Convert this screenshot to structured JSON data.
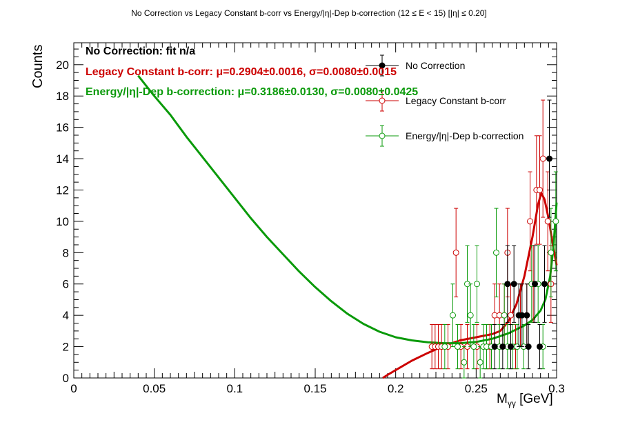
{
  "title": "No Correction vs Legacy Constant b-corr vs Energy/|η|-Dep b-correction   (12 ≤ E < 15)   [|η| ≤ 0.20]",
  "fit_texts": {
    "no_correction": "No Correction: fit n/a",
    "legacy": "Legacy Constant b-corr: μ=0.2904±0.0016, σ=0.0080±0.0015",
    "energy": "Energy/|η|-Dep b-correction: μ=0.3186±0.0130, σ=0.0080±0.0425"
  },
  "legend": [
    "No Correction",
    "Legacy Constant b-corr",
    "Energy/|η|-Dep b-correction"
  ],
  "axis": {
    "ylabel": "Counts",
    "xlabel_main": "M",
    "xlabel_sub": "γγ",
    "xlabel_unit": " [GeV]"
  },
  "colors": {
    "no_correction": "#000000",
    "legacy": "#cc0000",
    "energy": "#0a9a0a"
  },
  "chart_data": {
    "type": "scatter",
    "title": "No Correction vs Legacy Constant b-corr vs Energy/|η|-Dep b-correction   (12 ≤ E < 15)   [|η| ≤ 0.20]",
    "xlabel": "Mγγ [GeV]",
    "ylabel": "Counts",
    "xlim": [
      0,
      0.3
    ],
    "ylim": [
      0,
      21.4
    ],
    "xticks": [
      0,
      0.05,
      0.1,
      0.15,
      0.2,
      0.25,
      0.3
    ],
    "xtick_labels": [
      "0",
      "0.05",
      "0.1",
      "0.15",
      "0.2",
      "0.25",
      "0.3"
    ],
    "yticks": [
      0,
      2,
      4,
      6,
      8,
      10,
      12,
      14,
      16,
      18,
      20
    ],
    "ytick_labels": [
      "0",
      "2",
      "4",
      "6",
      "8",
      "10",
      "12",
      "14",
      "16",
      "18",
      "20"
    ],
    "grid": false,
    "legend_position": "top-right",
    "series": [
      {
        "name": "No Correction",
        "marker": "filled-circle",
        "points": [
          [
            0.2615,
            2
          ],
          [
            0.2665,
            2
          ],
          [
            0.2695,
            6
          ],
          [
            0.2715,
            2
          ],
          [
            0.2735,
            6
          ],
          [
            0.2765,
            4
          ],
          [
            0.2785,
            4
          ],
          [
            0.2815,
            4
          ],
          [
            0.2825,
            2
          ],
          [
            0.2865,
            6
          ],
          [
            0.2895,
            2
          ],
          [
            0.2925,
            6
          ],
          [
            0.2955,
            14
          ]
        ]
      },
      {
        "name": "Legacy Constant b-corr",
        "marker": "open-circle",
        "points": [
          [
            0.2225,
            2
          ],
          [
            0.2245,
            2
          ],
          [
            0.2265,
            2
          ],
          [
            0.2285,
            2
          ],
          [
            0.2325,
            2
          ],
          [
            0.2375,
            8
          ],
          [
            0.2405,
            2
          ],
          [
            0.2445,
            2
          ],
          [
            0.2505,
            2
          ],
          [
            0.2565,
            2
          ],
          [
            0.2585,
            2
          ],
          [
            0.2615,
            4
          ],
          [
            0.2645,
            4
          ],
          [
            0.2675,
            4
          ],
          [
            0.2695,
            8
          ],
          [
            0.2715,
            4
          ],
          [
            0.2745,
            2
          ],
          [
            0.2775,
            4
          ],
          [
            0.2815,
            4
          ],
          [
            0.2835,
            10
          ],
          [
            0.2855,
            6
          ],
          [
            0.2875,
            12
          ],
          [
            0.2895,
            12
          ],
          [
            0.2915,
            14
          ],
          [
            0.2945,
            10
          ],
          [
            0.2965,
            6
          ]
        ]
      },
      {
        "name": "Energy/|η|-Dep b-correction",
        "marker": "open-circle",
        "points": [
          [
            0.2305,
            2
          ],
          [
            0.2355,
            4
          ],
          [
            0.2385,
            2
          ],
          [
            0.2425,
            1
          ],
          [
            0.2445,
            6
          ],
          [
            0.2465,
            4
          ],
          [
            0.2485,
            2
          ],
          [
            0.2505,
            6
          ],
          [
            0.2525,
            1
          ],
          [
            0.2545,
            2
          ],
          [
            0.2565,
            2
          ],
          [
            0.2595,
            2
          ],
          [
            0.2625,
            8
          ],
          [
            0.2645,
            2
          ],
          [
            0.2675,
            4
          ],
          [
            0.2695,
            2
          ],
          [
            0.2725,
            2
          ],
          [
            0.2755,
            2
          ],
          [
            0.2795,
            2
          ],
          [
            0.2845,
            6
          ],
          [
            0.2885,
            6
          ],
          [
            0.2915,
            2
          ],
          [
            0.2965,
            8
          ],
          [
            0.2995,
            10
          ]
        ]
      }
    ],
    "fits": [
      {
        "name": "Legacy Constant b-corr",
        "type": "gaussian+polynomial",
        "curve": [
          [
            0.192,
            0.0
          ],
          [
            0.195,
            0.2
          ],
          [
            0.2,
            0.5
          ],
          [
            0.21,
            1.1
          ],
          [
            0.22,
            1.6
          ],
          [
            0.23,
            2.05
          ],
          [
            0.24,
            2.4
          ],
          [
            0.25,
            2.6
          ],
          [
            0.26,
            2.8
          ],
          [
            0.265,
            3.0
          ],
          [
            0.27,
            3.6
          ],
          [
            0.275,
            4.7
          ],
          [
            0.28,
            6.5
          ],
          [
            0.285,
            9.0
          ],
          [
            0.2885,
            11.1
          ],
          [
            0.2905,
            11.8
          ],
          [
            0.2925,
            11.4
          ],
          [
            0.295,
            10.2
          ],
          [
            0.2975,
            8.6
          ],
          [
            0.3,
            7.2
          ]
        ]
      },
      {
        "name": "Energy/|η|-Dep b-correction",
        "type": "gaussian+polynomial",
        "curve": [
          [
            0.04,
            19.3
          ],
          [
            0.05,
            18.0
          ],
          [
            0.06,
            16.8
          ],
          [
            0.07,
            15.4
          ],
          [
            0.08,
            14.1
          ],
          [
            0.09,
            12.8
          ],
          [
            0.1,
            11.5
          ],
          [
            0.11,
            10.2
          ],
          [
            0.12,
            9.0
          ],
          [
            0.13,
            7.9
          ],
          [
            0.14,
            6.8
          ],
          [
            0.15,
            5.8
          ],
          [
            0.16,
            4.9
          ],
          [
            0.17,
            4.1
          ],
          [
            0.18,
            3.45
          ],
          [
            0.19,
            2.95
          ],
          [
            0.2,
            2.6
          ],
          [
            0.21,
            2.4
          ],
          [
            0.22,
            2.28
          ],
          [
            0.23,
            2.22
          ],
          [
            0.24,
            2.22
          ],
          [
            0.25,
            2.3
          ],
          [
            0.26,
            2.5
          ],
          [
            0.27,
            2.85
          ],
          [
            0.28,
            3.35
          ],
          [
            0.285,
            3.7
          ],
          [
            0.29,
            4.3
          ],
          [
            0.293,
            5.0
          ],
          [
            0.296,
            6.5
          ],
          [
            0.298,
            8.3
          ],
          [
            0.3,
            11.2
          ]
        ]
      }
    ]
  }
}
